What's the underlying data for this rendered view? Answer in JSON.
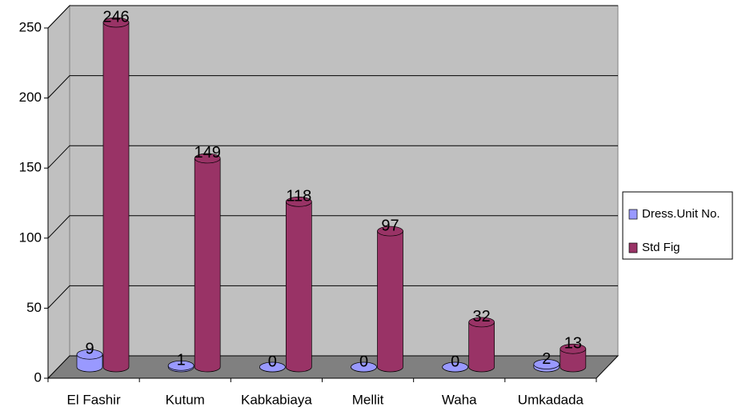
{
  "chart_data": {
    "type": "bar3d",
    "categories": [
      "El Fashir",
      "Kutum",
      "Kabkabiaya",
      "Mellit",
      "Waha",
      "Umkadada"
    ],
    "series": [
      {
        "name": "Dress.Unit No.",
        "color": "#9999ff",
        "values": [
          9,
          1,
          0,
          0,
          0,
          2
        ]
      },
      {
        "name": "Std Fig",
        "color": "#993366",
        "values": [
          246,
          149,
          118,
          97,
          32,
          13
        ]
      }
    ],
    "ylim": [
      0,
      250
    ],
    "yticks": [
      0,
      50,
      100,
      150,
      200,
      250
    ],
    "grid": true,
    "legend": "right"
  }
}
